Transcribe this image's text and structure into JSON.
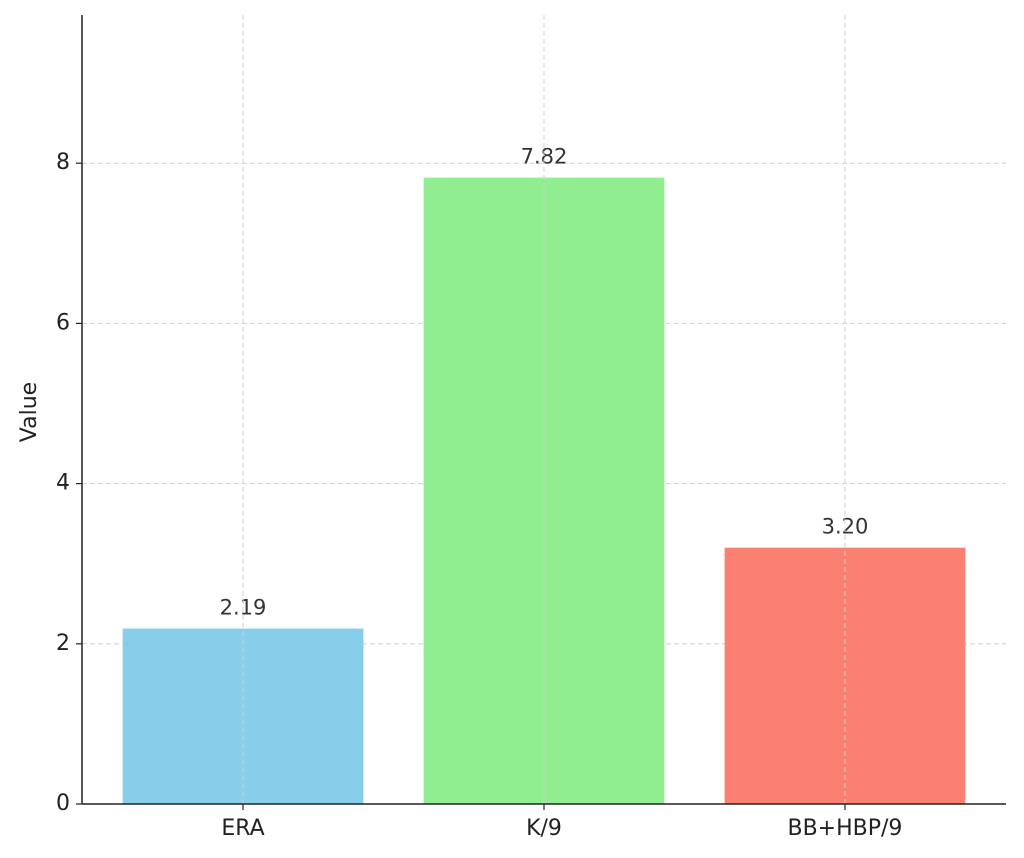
{
  "chart_data": {
    "type": "bar",
    "ylabel": "Value",
    "categories": [
      "ERA",
      "K/9",
      "BB+HBP/9"
    ],
    "values": [
      2.19,
      7.82,
      3.2
    ],
    "value_labels": [
      "2.19",
      "7.82",
      "3.20"
    ],
    "colors": [
      "#87ceeb",
      "#90ee90",
      "#fa8072"
    ],
    "ylim": [
      0,
      9.85
    ],
    "yticks": [
      0,
      2,
      4,
      6,
      8
    ],
    "grid": true
  }
}
